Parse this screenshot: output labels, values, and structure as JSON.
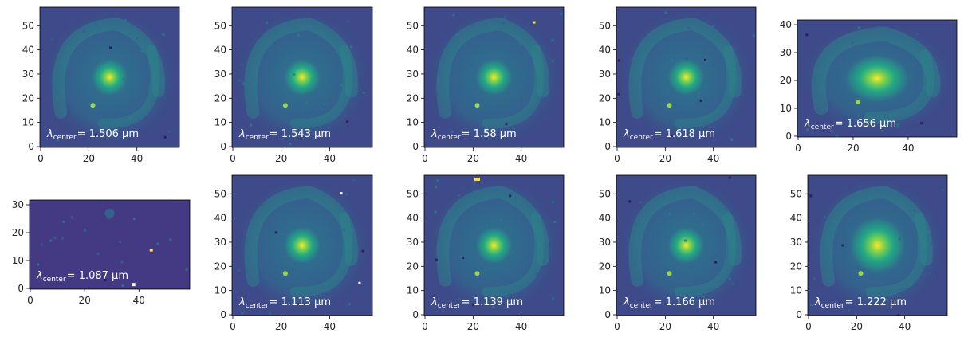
{
  "colormap": [
    "#440154",
    "#3b528b",
    "#21918c",
    "#5ec962",
    "#fde725"
  ],
  "panels": [
    {
      "lambda_symbol": "λ",
      "lambda_subscript": "center",
      "value_text": "= 1.506 μm",
      "x_ticks": [
        "0",
        "20",
        "40"
      ],
      "y_ticks": [
        "0",
        "10",
        "20",
        "30",
        "40",
        "50"
      ]
    },
    {
      "lambda_symbol": "λ",
      "lambda_subscript": "center",
      "value_text": "= 1.543 μm",
      "x_ticks": [
        "0",
        "20",
        "40"
      ],
      "y_ticks": [
        "0",
        "10",
        "20",
        "30",
        "40",
        "50"
      ]
    },
    {
      "lambda_symbol": "λ",
      "lambda_subscript": "center",
      "value_text": "= 1.58 μm",
      "x_ticks": [
        "0",
        "20",
        "40"
      ],
      "y_ticks": [
        "0",
        "10",
        "20",
        "30",
        "40",
        "50"
      ]
    },
    {
      "lambda_symbol": "λ",
      "lambda_subscript": "center",
      "value_text": "= 1.618 μm",
      "x_ticks": [
        "0",
        "20",
        "40"
      ],
      "y_ticks": [
        "0",
        "10",
        "20",
        "30",
        "40",
        "50"
      ]
    },
    {
      "lambda_symbol": "λ",
      "lambda_subscript": "center",
      "value_text": "= 1.656 μm",
      "x_ticks": [
        "0",
        "20",
        "40"
      ],
      "y_ticks": [
        "0",
        "10",
        "20",
        "30",
        "40"
      ]
    },
    {
      "lambda_symbol": "λ",
      "lambda_subscript": "center",
      "value_text": "= 1.087 μm",
      "x_ticks": [
        "0",
        "20",
        "40"
      ],
      "y_ticks": [
        "0",
        "10",
        "20",
        "30"
      ]
    },
    {
      "lambda_symbol": "λ",
      "lambda_subscript": "center",
      "value_text": "= 1.113 μm",
      "x_ticks": [
        "0",
        "20",
        "40"
      ],
      "y_ticks": [
        "0",
        "10",
        "20",
        "30",
        "40",
        "50"
      ]
    },
    {
      "lambda_symbol": "λ",
      "lambda_subscript": "center",
      "value_text": "= 1.139 μm",
      "x_ticks": [
        "0",
        "20",
        "40"
      ],
      "y_ticks": [
        "0",
        "10",
        "20",
        "30",
        "40",
        "50"
      ]
    },
    {
      "lambda_symbol": "λ",
      "lambda_subscript": "center",
      "value_text": "= 1.166 μm",
      "x_ticks": [
        "0",
        "20",
        "40"
      ],
      "y_ticks": [
        "0",
        "10",
        "20",
        "30",
        "40",
        "50"
      ]
    },
    {
      "lambda_symbol": "λ",
      "lambda_subscript": "center",
      "value_text": "= 1.222 μm",
      "x_ticks": [
        "0",
        "20",
        "40"
      ],
      "y_ticks": [
        "0",
        "10",
        "20",
        "30",
        "40",
        "50"
      ]
    }
  ]
}
